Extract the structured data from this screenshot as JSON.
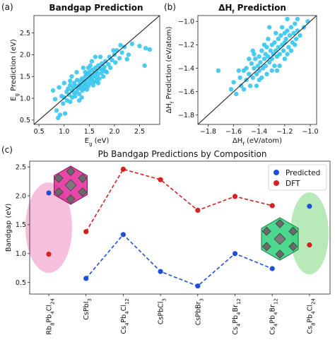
{
  "colors": {
    "scatter": "#36c5f0",
    "predicted": "#1f4fd8",
    "dft": "#d81f1f",
    "pink_region": "#f3a9cf",
    "green_region": "#9fe3a0",
    "parity_line": "#222222"
  },
  "panels": {
    "a": {
      "label": "(a)"
    },
    "b": {
      "label": "(b)"
    },
    "c": {
      "label": "(c)"
    }
  },
  "chart_data": [
    {
      "id": "a",
      "type": "scatter",
      "title": "Bandgap Prediction",
      "xlabel": "E_g (eV)",
      "ylabel": "E_g Prediction (eV)",
      "xlim": [
        0.4,
        2.9
      ],
      "ylim": [
        0.4,
        2.9
      ],
      "xticks": [
        0.5,
        1.0,
        1.5,
        2.0,
        2.5
      ],
      "yticks": [
        0.5,
        1.0,
        1.5,
        2.0,
        2.5
      ],
      "xtick_labels": [
        "0.5",
        "1.0",
        "1.5",
        "2.0",
        "2.5"
      ],
      "ytick_labels": [
        "0.5",
        "1.0",
        "1.5",
        "2.0",
        "2.5"
      ],
      "parity_line": true,
      "points": [
        [
          0.78,
          1.18
        ],
        [
          0.82,
          0.98
        ],
        [
          0.85,
          0.72
        ],
        [
          0.88,
          0.55
        ],
        [
          0.92,
          0.62
        ],
        [
          0.95,
          1.05
        ],
        [
          0.98,
          0.88
        ],
        [
          1.0,
          1.02
        ],
        [
          1.02,
          0.65
        ],
        [
          1.05,
          1.15
        ],
        [
          1.06,
          0.95
        ],
        [
          1.08,
          1.22
        ],
        [
          1.1,
          1.08
        ],
        [
          1.12,
          0.92
        ],
        [
          1.12,
          1.3
        ],
        [
          1.15,
          1.18
        ],
        [
          1.16,
          1.02
        ],
        [
          1.18,
          1.25
        ],
        [
          1.2,
          1.12
        ],
        [
          1.2,
          1.35
        ],
        [
          1.22,
          1.05
        ],
        [
          1.24,
          1.28
        ],
        [
          1.25,
          1.15
        ],
        [
          1.26,
          1.42
        ],
        [
          1.28,
          1.22
        ],
        [
          1.3,
          1.3
        ],
        [
          1.3,
          1.1
        ],
        [
          1.32,
          1.38
        ],
        [
          1.34,
          1.25
        ],
        [
          1.35,
          1.45
        ],
        [
          1.36,
          1.18
        ],
        [
          1.38,
          1.32
        ],
        [
          1.4,
          1.4
        ],
        [
          1.4,
          1.22
        ],
        [
          1.42,
          1.5
        ],
        [
          1.43,
          1.3
        ],
        [
          1.45,
          1.38
        ],
        [
          1.46,
          1.55
        ],
        [
          1.48,
          1.28
        ],
        [
          1.5,
          1.45
        ],
        [
          1.5,
          1.6
        ],
        [
          1.52,
          1.35
        ],
        [
          1.53,
          1.52
        ],
        [
          1.55,
          1.42
        ],
        [
          1.56,
          1.65
        ],
        [
          1.58,
          1.5
        ],
        [
          1.6,
          1.38
        ],
        [
          1.6,
          1.58
        ],
        [
          1.62,
          1.7
        ],
        [
          1.64,
          1.48
        ],
        [
          1.65,
          1.62
        ],
        [
          1.67,
          1.55
        ],
        [
          1.68,
          1.75
        ],
        [
          1.7,
          1.45
        ],
        [
          1.72,
          1.68
        ],
        [
          1.74,
          1.58
        ],
        [
          1.75,
          1.8
        ],
        [
          1.78,
          1.65
        ],
        [
          1.8,
          1.72
        ],
        [
          1.82,
          1.85
        ],
        [
          1.85,
          1.6
        ],
        [
          1.88,
          1.78
        ],
        [
          1.9,
          1.95
        ],
        [
          1.92,
          1.7
        ],
        [
          1.95,
          1.88
        ],
        [
          2.0,
          2.0
        ],
        [
          2.02,
          1.82
        ],
        [
          2.05,
          2.1
        ],
        [
          2.1,
          1.92
        ],
        [
          2.15,
          2.05
        ],
        [
          2.2,
          2.18
        ],
        [
          2.28,
          2.0
        ],
        [
          2.35,
          2.25
        ],
        [
          2.5,
          2.2
        ],
        [
          2.62,
          2.15
        ],
        [
          2.7,
          2.12
        ],
        [
          1.25,
          1.6
        ],
        [
          1.38,
          1.7
        ],
        [
          1.45,
          1.2
        ],
        [
          1.55,
          1.85
        ],
        [
          1.65,
          1.4
        ],
        [
          1.72,
          1.95
        ],
        [
          1.15,
          1.5
        ],
        [
          1.3,
          0.95
        ],
        [
          1.48,
          1.7
        ],
        [
          1.58,
          1.3
        ],
        [
          1.82,
          1.62
        ],
        [
          2.12,
          2.22
        ],
        [
          1.0,
          1.35
        ],
        [
          0.9,
          1.25
        ],
        [
          1.35,
          1.02
        ],
        [
          1.62,
          1.95
        ],
        [
          1.78,
          1.5
        ],
        [
          1.98,
          2.1
        ],
        [
          2.25,
          1.9
        ],
        [
          1.42,
          1.6
        ],
        [
          2.6,
          1.75
        ],
        [
          1.12,
          1.4
        ],
        [
          1.52,
          1.75
        ],
        [
          1.68,
          1.35
        ]
      ]
    },
    {
      "id": "b",
      "type": "scatter",
      "title": "ΔH_f Prediction",
      "xlabel": "ΔH_f (eV/atom)",
      "ylabel": "ΔH_f Prediction (eV/atom)",
      "xlim": [
        -1.88,
        -0.95
      ],
      "ylim": [
        -1.88,
        -0.95
      ],
      "xticks": [
        -1.8,
        -1.6,
        -1.4,
        -1.2,
        -1.0
      ],
      "yticks": [
        -1.8,
        -1.6,
        -1.4,
        -1.2,
        -1.0
      ],
      "xtick_labels": [
        "−1.8",
        "−1.6",
        "−1.4",
        "−1.2",
        "−1.0"
      ],
      "ytick_labels": [
        "−1.8",
        "−1.6",
        "−1.4",
        "−1.2",
        "−1.0"
      ],
      "parity_line": true,
      "points": [
        [
          -1.72,
          -1.42
        ],
        [
          -1.62,
          -1.58
        ],
        [
          -1.6,
          -1.52
        ],
        [
          -1.58,
          -1.62
        ],
        [
          -1.55,
          -1.48
        ],
        [
          -1.54,
          -1.55
        ],
        [
          -1.52,
          -1.42
        ],
        [
          -1.5,
          -1.5
        ],
        [
          -1.5,
          -1.4
        ],
        [
          -1.48,
          -1.45
        ],
        [
          -1.47,
          -1.55
        ],
        [
          -1.46,
          -1.36
        ],
        [
          -1.45,
          -1.48
        ],
        [
          -1.44,
          -1.4
        ],
        [
          -1.43,
          -1.32
        ],
        [
          -1.42,
          -1.45
        ],
        [
          -1.41,
          -1.38
        ],
        [
          -1.4,
          -1.3
        ],
        [
          -1.4,
          -1.42
        ],
        [
          -1.39,
          -1.35
        ],
        [
          -1.38,
          -1.25
        ],
        [
          -1.37,
          -1.4
        ],
        [
          -1.36,
          -1.32
        ],
        [
          -1.35,
          -1.28
        ],
        [
          -1.35,
          -1.38
        ],
        [
          -1.34,
          -1.22
        ],
        [
          -1.33,
          -1.3
        ],
        [
          -1.32,
          -1.35
        ],
        [
          -1.31,
          -1.25
        ],
        [
          -1.3,
          -1.2
        ],
        [
          -1.3,
          -1.32
        ],
        [
          -1.29,
          -1.28
        ],
        [
          -1.28,
          -1.18
        ],
        [
          -1.27,
          -1.25
        ],
        [
          -1.26,
          -1.3
        ],
        [
          -1.25,
          -1.15
        ],
        [
          -1.25,
          -1.22
        ],
        [
          -1.24,
          -1.28
        ],
        [
          -1.23,
          -1.12
        ],
        [
          -1.22,
          -1.2
        ],
        [
          -1.21,
          -1.25
        ],
        [
          -1.2,
          -1.1
        ],
        [
          -1.2,
          -1.18
        ],
        [
          -1.19,
          -1.15
        ],
        [
          -1.18,
          -1.08
        ],
        [
          -1.17,
          -1.22
        ],
        [
          -1.16,
          -1.12
        ],
        [
          -1.15,
          -1.05
        ],
        [
          -1.14,
          -1.18
        ],
        [
          -1.13,
          -1.1
        ],
        [
          -1.12,
          -1.02
        ],
        [
          -1.11,
          -1.15
        ],
        [
          -1.1,
          -1.08
        ],
        [
          -1.08,
          -1.12
        ],
        [
          -1.05,
          -1.05
        ],
        [
          -1.02,
          -1.0
        ],
        [
          -1.45,
          -1.25
        ],
        [
          -1.38,
          -1.48
        ],
        [
          -1.33,
          -1.15
        ],
        [
          -1.28,
          -1.38
        ],
        [
          -1.22,
          -1.05
        ],
        [
          -1.18,
          -1.28
        ],
        [
          -1.42,
          -1.55
        ],
        [
          -1.36,
          -1.2
        ],
        [
          -1.26,
          -1.42
        ],
        [
          -1.48,
          -1.32
        ],
        [
          -1.32,
          -1.05
        ],
        [
          -1.15,
          -1.25
        ],
        [
          -1.24,
          -1.38
        ],
        [
          -1.4,
          -1.5
        ],
        [
          -1.52,
          -1.58
        ],
        [
          -1.44,
          -1.28
        ],
        [
          -1.3,
          -1.42
        ],
        [
          -1.2,
          -1.32
        ],
        [
          -1.12,
          -1.2
        ],
        [
          -1.56,
          -1.42
        ],
        [
          -1.34,
          -1.45
        ],
        [
          -1.27,
          -1.1
        ],
        [
          -1.18,
          -0.98
        ],
        [
          -1.1,
          -0.98
        ]
      ]
    },
    {
      "id": "c",
      "type": "line",
      "title": "Pb Bandgap Predictions by Composition",
      "xlabel": "",
      "ylabel": "Bandgap (eV)",
      "ylim": [
        0.3,
        2.6
      ],
      "yticks": [
        0.5,
        1.0,
        1.5,
        2.0,
        2.5
      ],
      "ytick_labels": [
        "0.5",
        "1.0",
        "1.5",
        "2.0",
        "2.5"
      ],
      "categories": [
        "Rb8Pb4Cl24",
        "CsPbI3",
        "Cs4Pb4Cl12",
        "CsPbCl3",
        "CsPbBr3",
        "Cs4Pb4Br12",
        "Cs4Pb4Br12",
        "Cs8Pb4Cl24"
      ],
      "category_labels": [
        {
          "text": "Rb8Pb4Cl24"
        },
        {
          "text": "CsPbI3"
        },
        {
          "text": "Cs4Pb4Cl12"
        },
        {
          "text": "CsPbCl3"
        },
        {
          "text": "CsPbBr3"
        },
        {
          "text": "Cs4Pb4Br12"
        },
        {
          "text": "Cs4Pb4Br12"
        },
        {
          "text": "Cs8Pb4Cl24"
        }
      ],
      "legend": {
        "position": "top-right",
        "entries": [
          "Predicted",
          "DFT"
        ]
      },
      "series": [
        {
          "name": "Predicted",
          "color_key": "predicted",
          "values": [
            2.05,
            0.57,
            1.33,
            0.69,
            0.44,
            1.0,
            0.74,
            1.82
          ],
          "connected_range": [
            1,
            6
          ]
        },
        {
          "name": "DFT",
          "color_key": "dft",
          "values": [
            0.99,
            1.38,
            2.46,
            2.28,
            1.75,
            1.99,
            1.83,
            1.15
          ],
          "connected_range": [
            1,
            6
          ]
        }
      ]
    }
  ]
}
